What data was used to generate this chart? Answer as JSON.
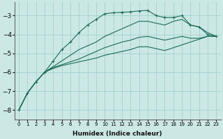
{
  "xlabel": "Humidex (Indice chaleur)",
  "background_color": "#cce8e4",
  "grid_color": "#99cccc",
  "line_color": "#1a6b5a",
  "x_data": [
    0,
    1,
    2,
    3,
    4,
    5,
    6,
    7,
    8,
    9,
    10,
    11,
    12,
    13,
    14,
    15,
    16,
    17,
    18,
    19,
    20,
    21,
    22,
    23
  ],
  "lines": [
    [
      -8.0,
      -7.1,
      -6.5,
      -6.0,
      -5.4,
      -4.8,
      -4.4,
      -3.9,
      -3.5,
      -3.2,
      -2.9,
      -2.85,
      -2.82,
      -2.8,
      -2.75,
      -2.72,
      -3.0,
      -3.1,
      -3.1,
      -3.0,
      -3.5,
      -3.6,
      -4.0,
      -4.1
    ],
    [
      -8.0,
      -7.1,
      -6.5,
      -6.0,
      -5.7,
      -5.4,
      -5.1,
      -4.8,
      -4.6,
      -4.4,
      -4.1,
      -3.9,
      -3.7,
      -3.5,
      -3.3,
      -3.3,
      -3.4,
      -3.5,
      -3.3,
      -3.2,
      -3.5,
      -3.6,
      -3.9,
      -4.1
    ],
    [
      -8.0,
      -7.1,
      -6.5,
      -6.0,
      -5.75,
      -5.6,
      -5.45,
      -5.3,
      -5.1,
      -4.9,
      -4.7,
      -4.55,
      -4.4,
      -4.3,
      -4.15,
      -4.1,
      -4.2,
      -4.3,
      -4.2,
      -4.1,
      -4.2,
      -4.2,
      -4.1,
      -4.1
    ],
    [
      -8.0,
      -7.1,
      -6.5,
      -6.0,
      -5.8,
      -5.65,
      -5.55,
      -5.45,
      -5.35,
      -5.25,
      -5.1,
      -5.0,
      -4.9,
      -4.8,
      -4.65,
      -4.65,
      -4.75,
      -4.85,
      -4.7,
      -4.55,
      -4.4,
      -4.25,
      -4.1,
      -4.1
    ]
  ],
  "marker_line_index": 0,
  "ylim": [
    -8.5,
    -2.3
  ],
  "xlim": [
    -0.5,
    23.5
  ],
  "yticks": [
    -8,
    -7,
    -6,
    -5,
    -4,
    -3
  ],
  "xticks": [
    0,
    1,
    2,
    3,
    4,
    5,
    6,
    7,
    8,
    9,
    10,
    11,
    12,
    13,
    14,
    15,
    16,
    17,
    18,
    19,
    20,
    21,
    22,
    23
  ]
}
